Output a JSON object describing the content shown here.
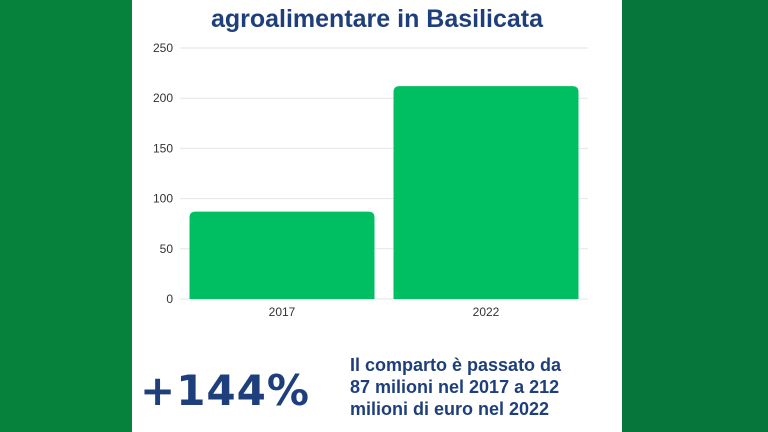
{
  "title": "agroalimentare in Basilicata",
  "chart_data": {
    "type": "bar",
    "categories": [
      "2017",
      "2022"
    ],
    "values": [
      87,
      212
    ],
    "title": "agroalimentare in Basilicata",
    "xlabel": "",
    "ylabel": "",
    "ylim": [
      0,
      250
    ],
    "yticks": [
      0,
      50,
      100,
      150,
      200,
      250
    ],
    "grid": true,
    "legend": "none",
    "bar_color": "#00bf63"
  },
  "highlight": {
    "value": "+144%",
    "lines": [
      "Il comparto è passato da",
      "87 milioni nel 2017 a 212",
      "milioni di euro nel 2022"
    ]
  },
  "colors": {
    "background": "#07823d",
    "card": "#ffffff",
    "text": "#1f3f7c",
    "bar": "#00bf63"
  }
}
